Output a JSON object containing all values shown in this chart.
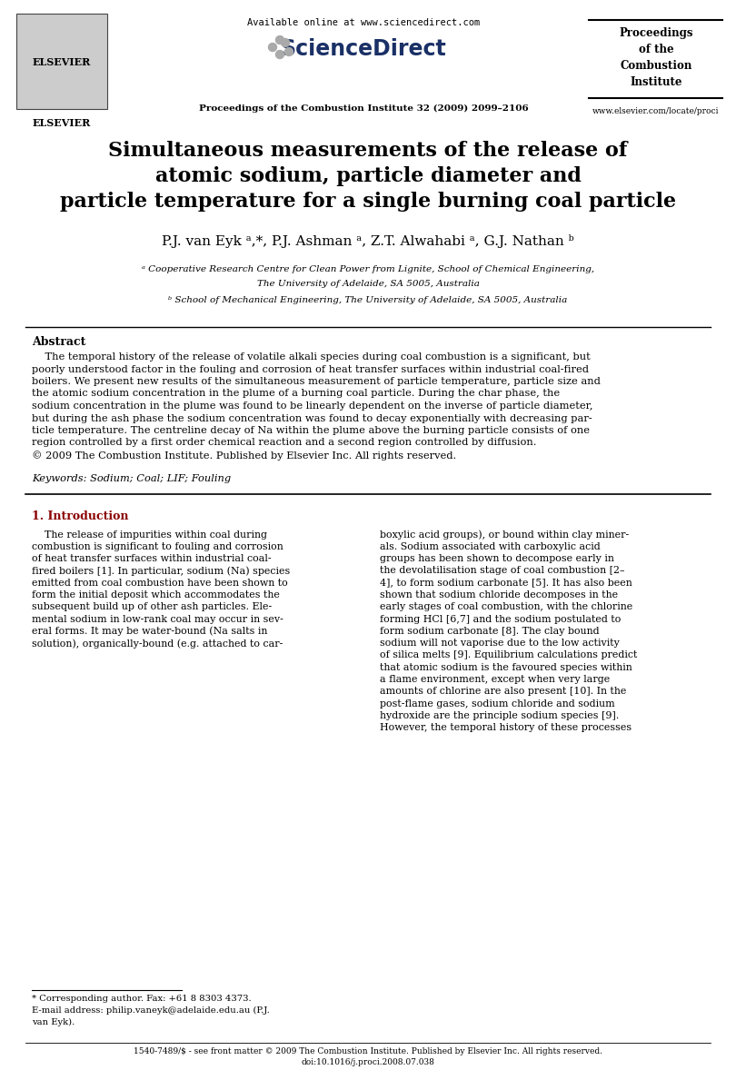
{
  "bg_color": "#ffffff",
  "header": {
    "available_online_text": "Available online at www.sciencedirect.com",
    "sciencedirect_text": "ScienceDirect",
    "journal_text": "Proceedings of the Combustion Institute 32 (2009) 2099–2106",
    "proceedings_lines": [
      "Proceedings",
      "of the",
      "Combustion",
      "Institute"
    ],
    "website_text": "www.elsevier.com/locate/proci"
  },
  "title_line1": "Simultaneous measurements of the release of",
  "title_line2": "atomic sodium, particle diameter and",
  "title_line3": "particle temperature for a single burning coal particle",
  "authors": "P.J. van Eyk ᵃ,*, P.J. Ashman ᵃ, Z.T. Alwahabi ᵃ, G.J. Nathan ᵇ",
  "affil_a_line1": "ᵃ Cooperative Research Centre for Clean Power from Lignite, School of Chemical Engineering,",
  "affil_a_line2": "The University of Adelaide, SA 5005, Australia",
  "affil_b": "ᵇ School of Mechanical Engineering, The University of Adelaide, SA 5005, Australia",
  "abstract_title": "Abstract",
  "abstract_body": "    The temporal history of the release of volatile alkali species during coal combustion is a significant, but poorly understood factor in the fouling and corrosion of heat transfer surfaces within industrial coal-fired boilers. We present new results of the simultaneous measurement of particle temperature, particle size and the atomic sodium concentration in the plume of a burning coal particle. During the char phase, the sodium concentration in the plume was found to be linearly dependent on the inverse of particle diameter, but during the ash phase the sodium concentration was found to decay exponentially with decreasing par-ticle temperature. The centreline decay of Na within the plume above the burning particle consists of one region controlled by a first order chemical reaction and a second region controlled by diffusion.\n© 2009 The Combustion Institute. Published by Elsevier Inc. All rights reserved.",
  "keywords_text": "Keywords: Sodium; Coal; LIF; Fouling",
  "section1_title": "1. Introduction",
  "section1_col1_lines": [
    "    The release of impurities within coal during",
    "combustion is significant to fouling and corrosion",
    "of heat transfer surfaces within industrial coal-",
    "fired boilers [1]. In particular, sodium (Na) species",
    "emitted from coal combustion have been shown to",
    "form the initial deposit which accommodates the",
    "subsequent build up of other ash particles. Ele-",
    "mental sodium in low-rank coal may occur in sev-",
    "eral forms. It may be water-bound (Na salts in",
    "solution), organically-bound (e.g. attached to car-"
  ],
  "section1_col2_lines": [
    "boxylic acid groups), or bound within clay miner-",
    "als. Sodium associated with carboxylic acid",
    "groups has been shown to decompose early in",
    "the devolatilisation stage of coal combustion [2–",
    "4], to form sodium carbonate [5]. It has also been",
    "shown that sodium chloride decomposes in the",
    "early stages of coal combustion, with the chlorine",
    "forming HCl [6,7] and the sodium postulated to",
    "form sodium carbonate [8]. The clay bound",
    "sodium will not vaporise due to the low activity",
    "of silica melts [9]. Equilibrium calculations predict",
    "that atomic sodium is the favoured species within",
    "a flame environment, except when very large",
    "amounts of chlorine are also present [10]. In the",
    "post-flame gases, sodium chloride and sodium",
    "hydroxide are the principle sodium species [9].",
    "However, the temporal history of these processes"
  ],
  "footnote_star": "* Corresponding author. Fax: +61 8 8303 4373.",
  "footnote_email": "E-mail address: philip.vaneyk@adelaide.edu.au (P.J.",
  "footnote_email2": "van Eyk).",
  "footer_line1": "1540-7489/$ - see front matter © 2009 The Combustion Institute. Published by Elsevier Inc. All rights reserved.",
  "footer_line2": "doi:10.1016/j.proci.2008.07.038"
}
